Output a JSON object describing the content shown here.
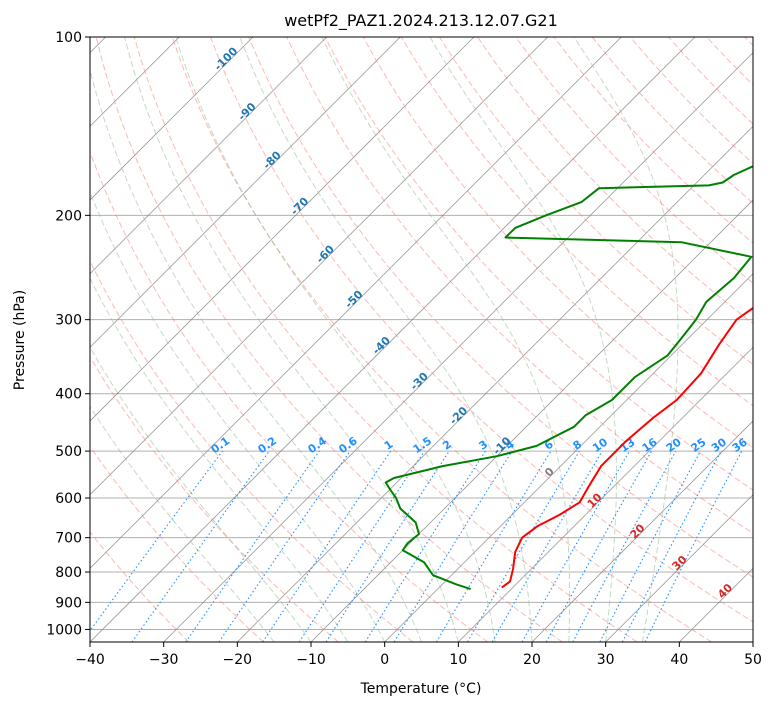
{
  "chart_data": {
    "type": "line",
    "subtype": "skew-t log-p diagram",
    "title": "wetPf2_PAZ1.2024.213.12.07.G21",
    "xlabel": "Temperature (°C)",
    "ylabel": "Pressure (hPa)",
    "xlim": [
      -40,
      50
    ],
    "ylim": [
      1050,
      100
    ],
    "y_scale": "log",
    "grid": true,
    "x_ticks": [
      -40,
      -30,
      -20,
      -10,
      0,
      10,
      20,
      30,
      40,
      50
    ],
    "x_tick_labels": [
      "−40",
      "−30",
      "−20",
      "−10",
      "0",
      "10",
      "20",
      "30",
      "40",
      "50"
    ],
    "y_ticks": [
      1000,
      900,
      800,
      700,
      600,
      500,
      400,
      300,
      200,
      100
    ],
    "y_tick_labels": [
      "1000",
      "900",
      "800",
      "700",
      "600",
      "500",
      "400",
      "300",
      "200",
      "100"
    ],
    "colors": {
      "temperature": "#ff0000",
      "dewpoint": "#008000",
      "isotherm": "#808080",
      "dry_adiabat": "#fa8072",
      "moist_adiabat": "#8fbc8f",
      "mixing_ratio": "#1e90ff",
      "ice_isotherm_labels": "#1f77b4",
      "warm_isotherm_labels": "#d62728",
      "zero_label": "#808080"
    },
    "mixing_ratio_labels": [
      "0.1",
      "0.2",
      "0.4",
      "0.6",
      "1",
      "1.5",
      "2",
      "3",
      "4",
      "6",
      "8",
      "10",
      "13",
      "16",
      "20",
      "25",
      "30",
      "36"
    ],
    "cold_isotherm_labels": [
      "-100",
      "-90",
      "-80",
      "-70",
      "-60",
      "-50",
      "-40",
      "-30",
      "-20",
      "-10"
    ],
    "zero_isotherm_label": "0",
    "warm_isotherm_labels": [
      "10",
      "20",
      "30",
      "40"
    ],
    "series": [
      {
        "name": "Temperature",
        "points": [
          [
            8.5,
            850
          ],
          [
            8.8,
            830
          ],
          [
            7.5,
            790
          ],
          [
            5.5,
            740
          ],
          [
            4.5,
            700
          ],
          [
            5.0,
            670
          ],
          [
            6.5,
            640
          ],
          [
            7.5,
            610
          ],
          [
            6.5,
            570
          ],
          [
            5.5,
            530
          ],
          [
            5.5,
            480
          ],
          [
            6.0,
            440
          ],
          [
            6.8,
            410
          ],
          [
            6.5,
            370
          ],
          [
            5.0,
            330
          ],
          [
            4.0,
            300
          ],
          [
            5.0,
            280
          ],
          [
            7.0,
            265
          ],
          [
            9.5,
            250
          ],
          [
            12.0,
            236
          ],
          [
            14.5,
            225
          ],
          [
            18.0,
            210
          ],
          [
            19.5,
            200
          ],
          [
            21.5,
            190
          ],
          [
            22.5,
            180
          ],
          [
            24.0,
            170
          ],
          [
            27.0,
            160
          ],
          [
            29.0,
            150
          ],
          [
            30.5,
            140
          ],
          [
            31.0,
            130
          ],
          [
            33.0,
            120
          ],
          [
            37.0,
            110
          ],
          [
            38.5,
            105
          ],
          [
            40.5,
            100
          ]
        ]
      },
      {
        "name": "Dewpoint",
        "points": [
          [
            4.5,
            855
          ],
          [
            2.0,
            840
          ],
          [
            -2.5,
            810
          ],
          [
            -5.5,
            770
          ],
          [
            -10.0,
            735
          ],
          [
            -10.3,
            715
          ],
          [
            -10.0,
            690
          ],
          [
            -12.0,
            660
          ],
          [
            -16.0,
            625
          ],
          [
            -18.0,
            600
          ],
          [
            -20.0,
            580
          ],
          [
            -21.5,
            565
          ],
          [
            -21.0,
            555
          ],
          [
            -16.0,
            530
          ],
          [
            -10.0,
            510
          ],
          [
            -6.0,
            490
          ],
          [
            -3.5,
            455
          ],
          [
            -3.5,
            435
          ],
          [
            -2.0,
            410
          ],
          [
            -2.0,
            375
          ],
          [
            -0.5,
            345
          ],
          [
            -1.0,
            320
          ],
          [
            -1.5,
            300
          ],
          [
            -2.5,
            280
          ],
          [
            -2.0,
            255
          ],
          [
            -2.5,
            235
          ],
          [
            -14.0,
            222
          ],
          [
            -38.5,
            218
          ],
          [
            -38.5,
            210
          ],
          [
            -36.0,
            200
          ],
          [
            -33.0,
            190
          ],
          [
            -32.5,
            180
          ],
          [
            -18.0,
            178
          ],
          [
            -16.5,
            176
          ],
          [
            -16.0,
            171
          ],
          [
            -14.5,
            165
          ],
          [
            -10.0,
            155
          ],
          [
            -7.0,
            145
          ],
          [
            -3.0,
            130
          ],
          [
            0.0,
            120
          ],
          [
            3.0,
            110
          ],
          [
            5.5,
            100
          ]
        ]
      }
    ]
  }
}
